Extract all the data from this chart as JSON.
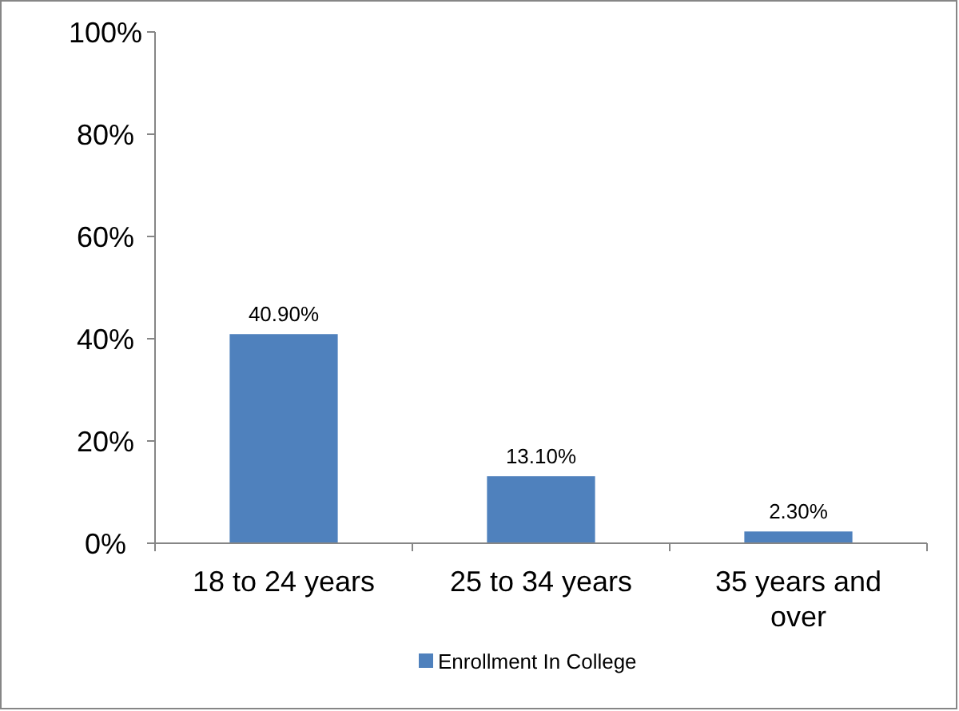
{
  "chart_data": {
    "type": "bar",
    "categories": [
      "18 to 24 years",
      "25 to 34 years",
      "35 years and over"
    ],
    "series": [
      {
        "name": "Enrollment In College",
        "color": "#4f81bd",
        "values": [
          40.9,
          13.1,
          2.3
        ],
        "value_labels": [
          "40.90%",
          "13.10%",
          "2.30%"
        ]
      }
    ],
    "ylim": [
      0,
      100
    ],
    "yticks": [
      {
        "value": 0,
        "label": "0%"
      },
      {
        "value": 20,
        "label": "20%"
      },
      {
        "value": 40,
        "label": "40%"
      },
      {
        "value": 60,
        "label": "60%"
      },
      {
        "value": 80,
        "label": "80%"
      },
      {
        "value": 100,
        "label": "100%"
      }
    ],
    "grid": false,
    "legend": "bottom"
  }
}
